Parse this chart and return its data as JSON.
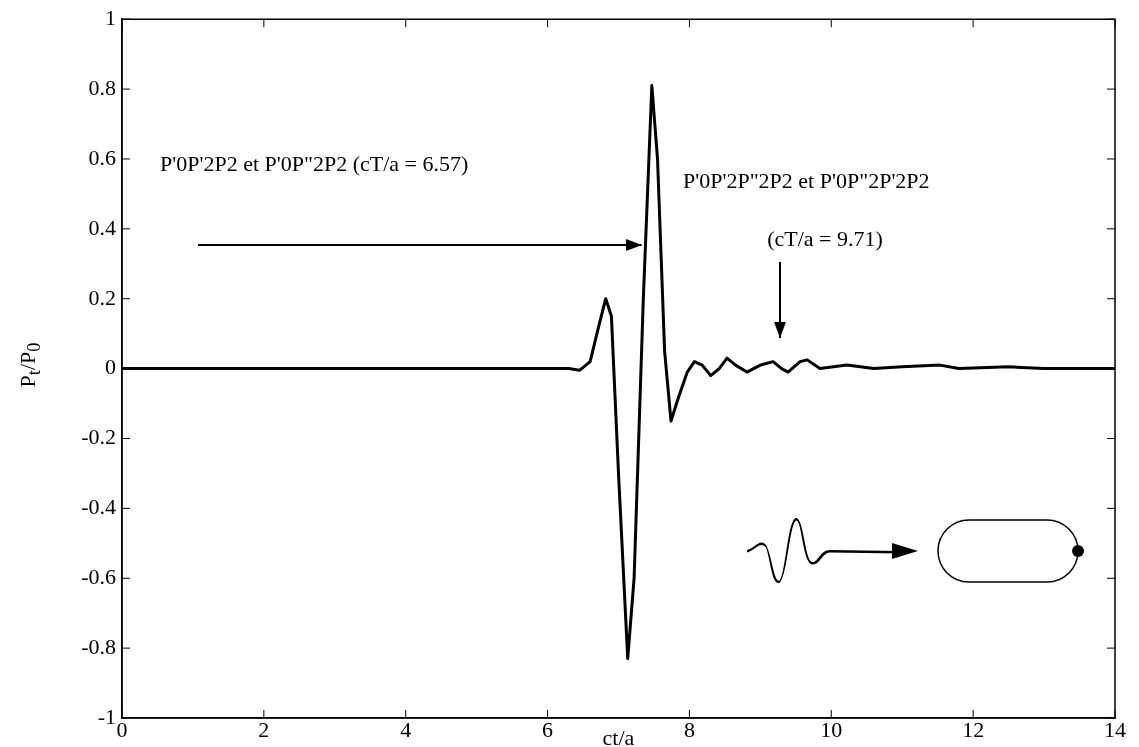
{
  "chart_data": {
    "type": "line",
    "xlabel": "ct/a",
    "ylabel": "P$_{t}$/P$_{0}$",
    "x": [
      0,
      6.0,
      6.3,
      6.45,
      6.6,
      6.72,
      6.82,
      6.9,
      7.0,
      7.13,
      7.22,
      7.35,
      7.47,
      7.55,
      7.65,
      7.74,
      7.85,
      7.97,
      8.07,
      8.18,
      8.3,
      8.42,
      8.53,
      8.65,
      8.81,
      9.0,
      9.18,
      9.3,
      9.39,
      9.56,
      9.66,
      9.84,
      10.22,
      10.6,
      11.0,
      11.53,
      11.8,
      12.5,
      13.0,
      14
    ],
    "series": [
      {
        "color": "#000000",
        "values": [
          0,
          0,
          0,
          -0.005,
          0.02,
          0.12,
          0.2,
          0.15,
          -0.3,
          -0.83,
          -0.6,
          0.2,
          0.81,
          0.6,
          0.05,
          -0.15,
          -0.08,
          -0.01,
          0.02,
          0.01,
          -0.02,
          0,
          0.03,
          0.01,
          -0.01,
          0.01,
          0.02,
          0,
          -0.01,
          0.02,
          0.025,
          0,
          0.01,
          0,
          0.005,
          0.01,
          0,
          0.005,
          0,
          0
        ]
      }
    ],
    "xlim": [
      0,
      14
    ],
    "xticks": [
      0,
      2,
      4,
      6,
      8,
      10,
      12,
      14
    ],
    "ylim": [
      -1,
      1
    ],
    "yticks": [
      -1,
      -0.8,
      -0.6,
      -0.4,
      -0.2,
      0,
      0.2,
      0.4,
      0.6,
      0.8,
      1
    ],
    "grid": false,
    "legend": false,
    "marker": "none",
    "line_style": "solid",
    "annotations": [
      "P'0P'2P2 et P'0P\"2P2 (cT/a = 6.57)",
      "P'0P'2P\"2P2 et P'0P\"2P'2P2",
      "(cT/a = 9.71)"
    ]
  }
}
